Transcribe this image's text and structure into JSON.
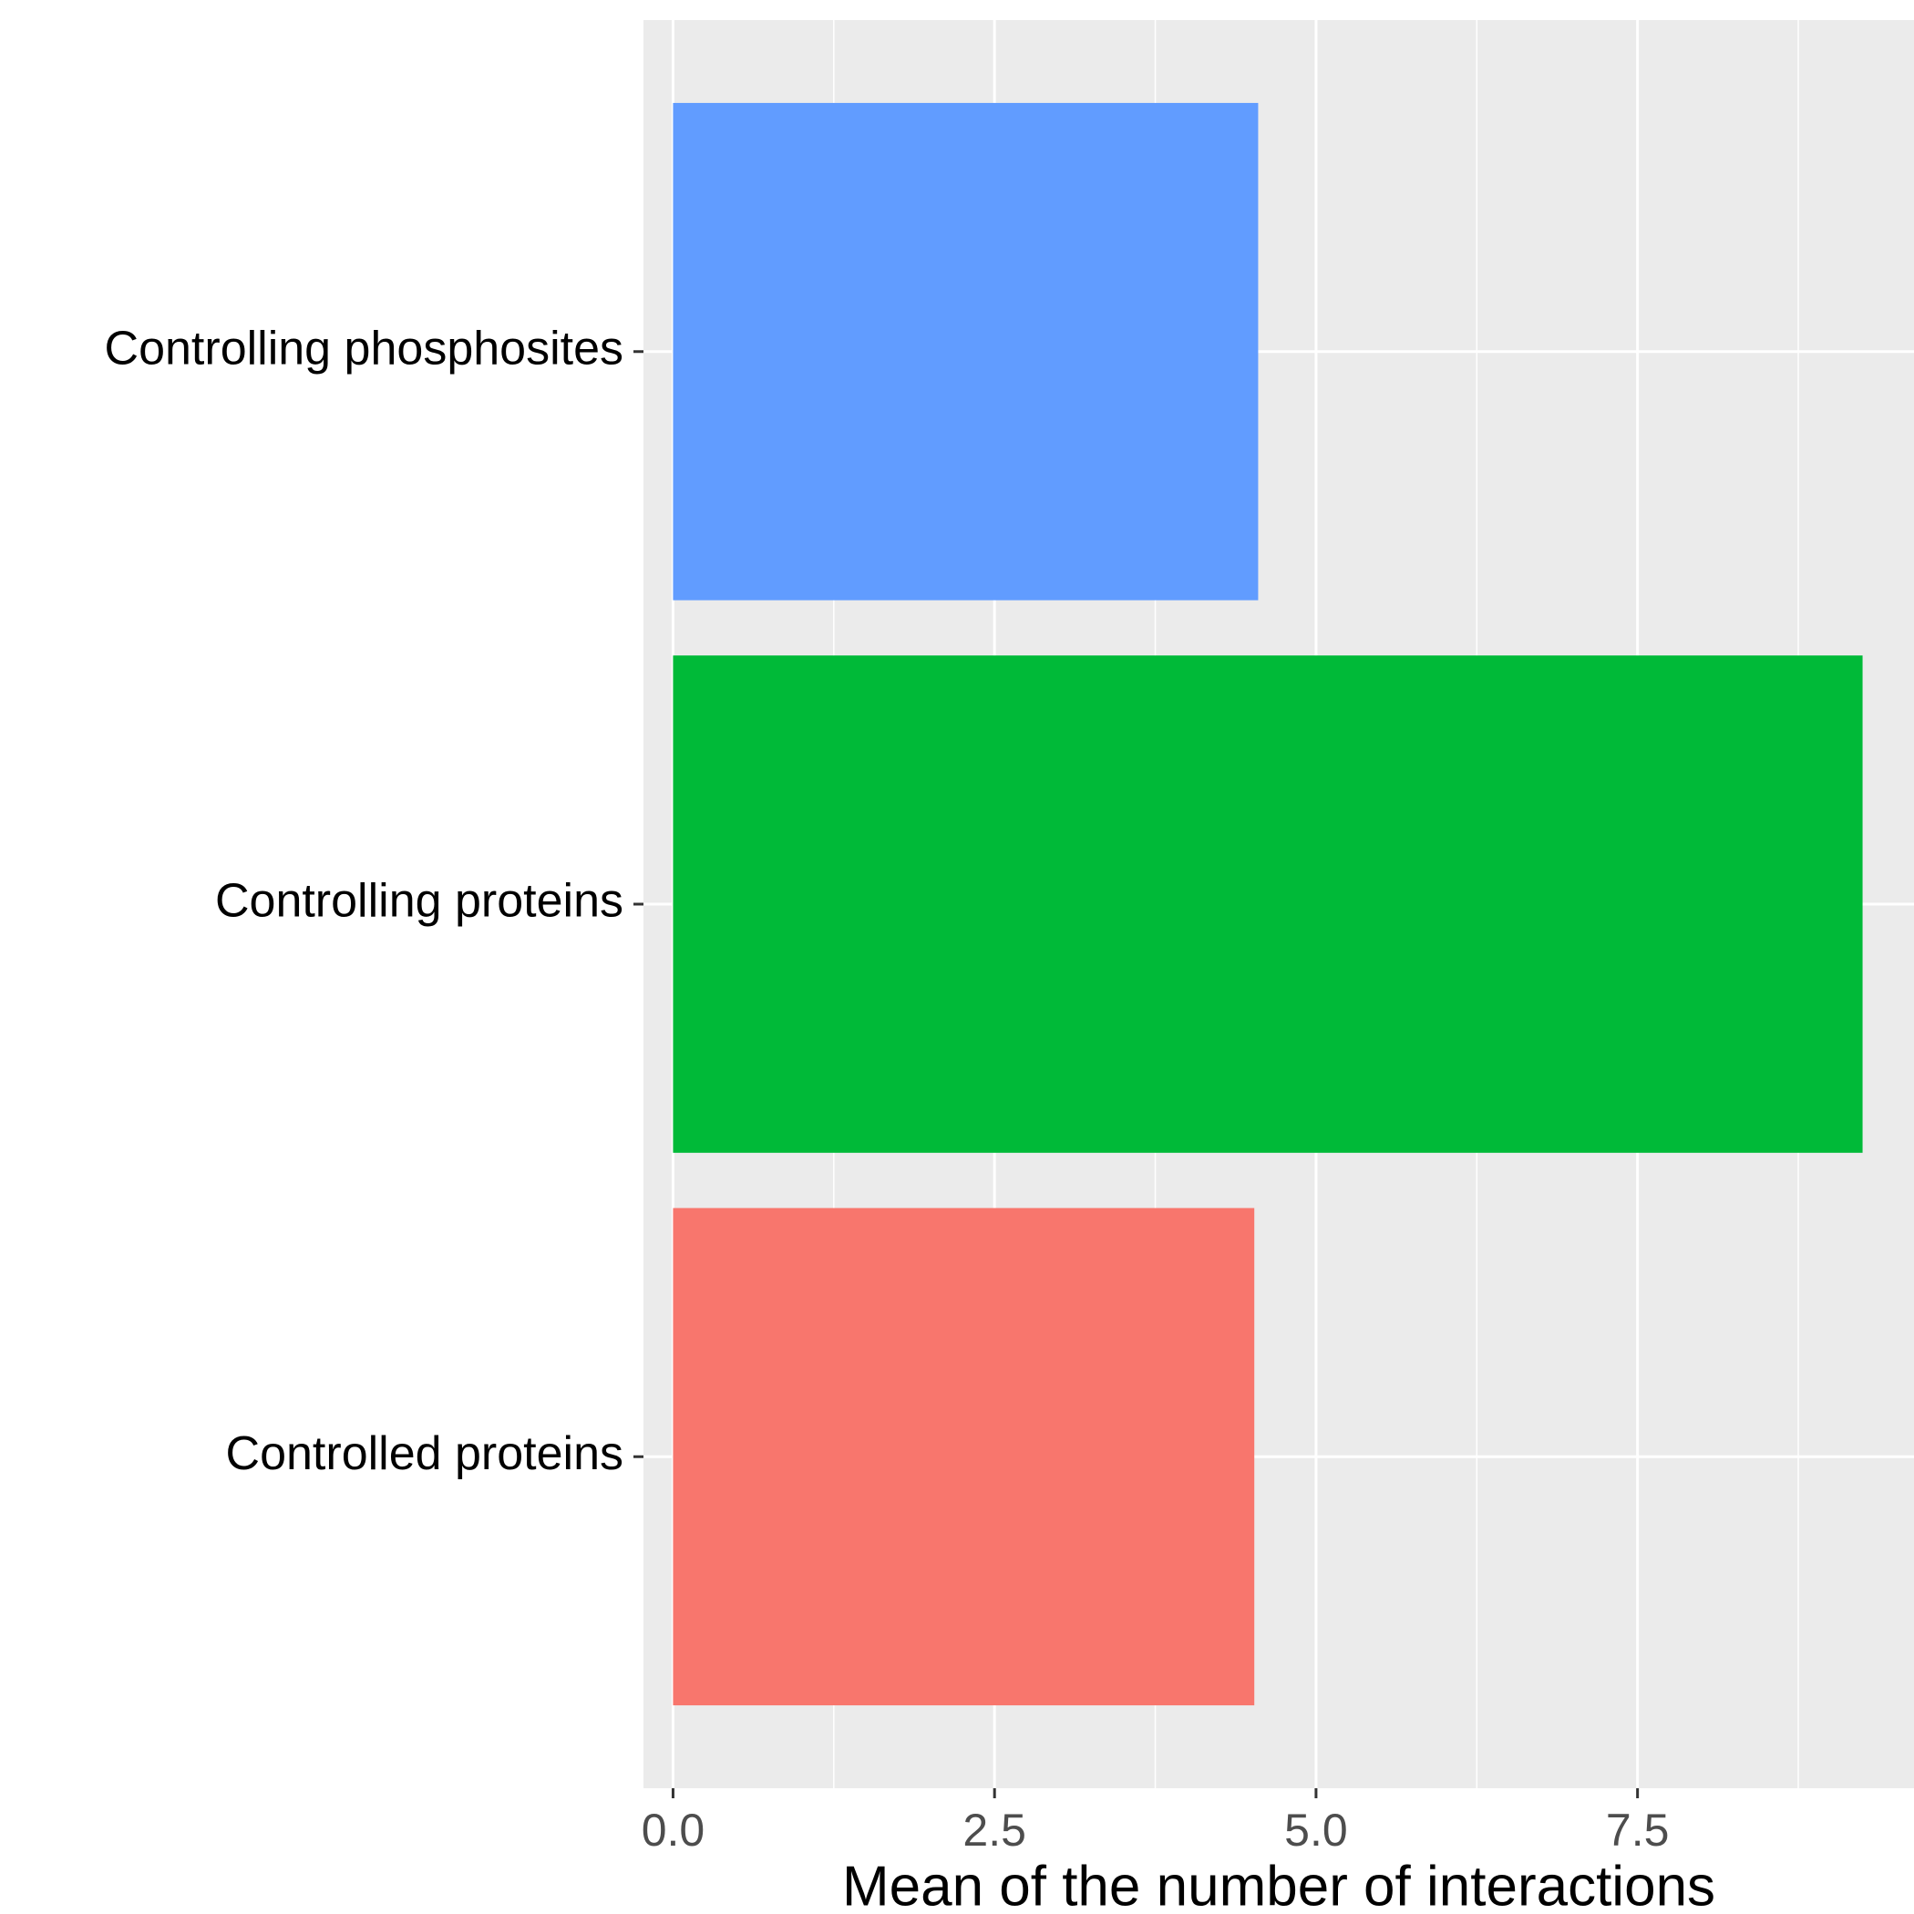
{
  "chart_data": {
    "type": "bar",
    "orientation": "horizontal",
    "title": "",
    "xlabel": "Mean of the number of interactions",
    "ylabel": "",
    "xlim": [
      -0.23,
      9.65
    ],
    "x_ticks": [
      0.0,
      2.5,
      5.0,
      7.5
    ],
    "x_tick_labels": [
      "0.0",
      "2.5",
      "5.0",
      "7.5"
    ],
    "x_minor_ticks": [
      1.25,
      3.75,
      6.25,
      8.75
    ],
    "categories": [
      "Controlled proteins",
      "Controlling proteins",
      "Controlling phosphosites"
    ],
    "values": [
      4.52,
      9.25,
      4.55
    ],
    "colors": [
      "#F8766D",
      "#00BA38",
      "#619CFF"
    ],
    "legend": "none",
    "grid": true,
    "panel_background": "#EBEBEB",
    "grid_color": "#FFFFFF"
  }
}
